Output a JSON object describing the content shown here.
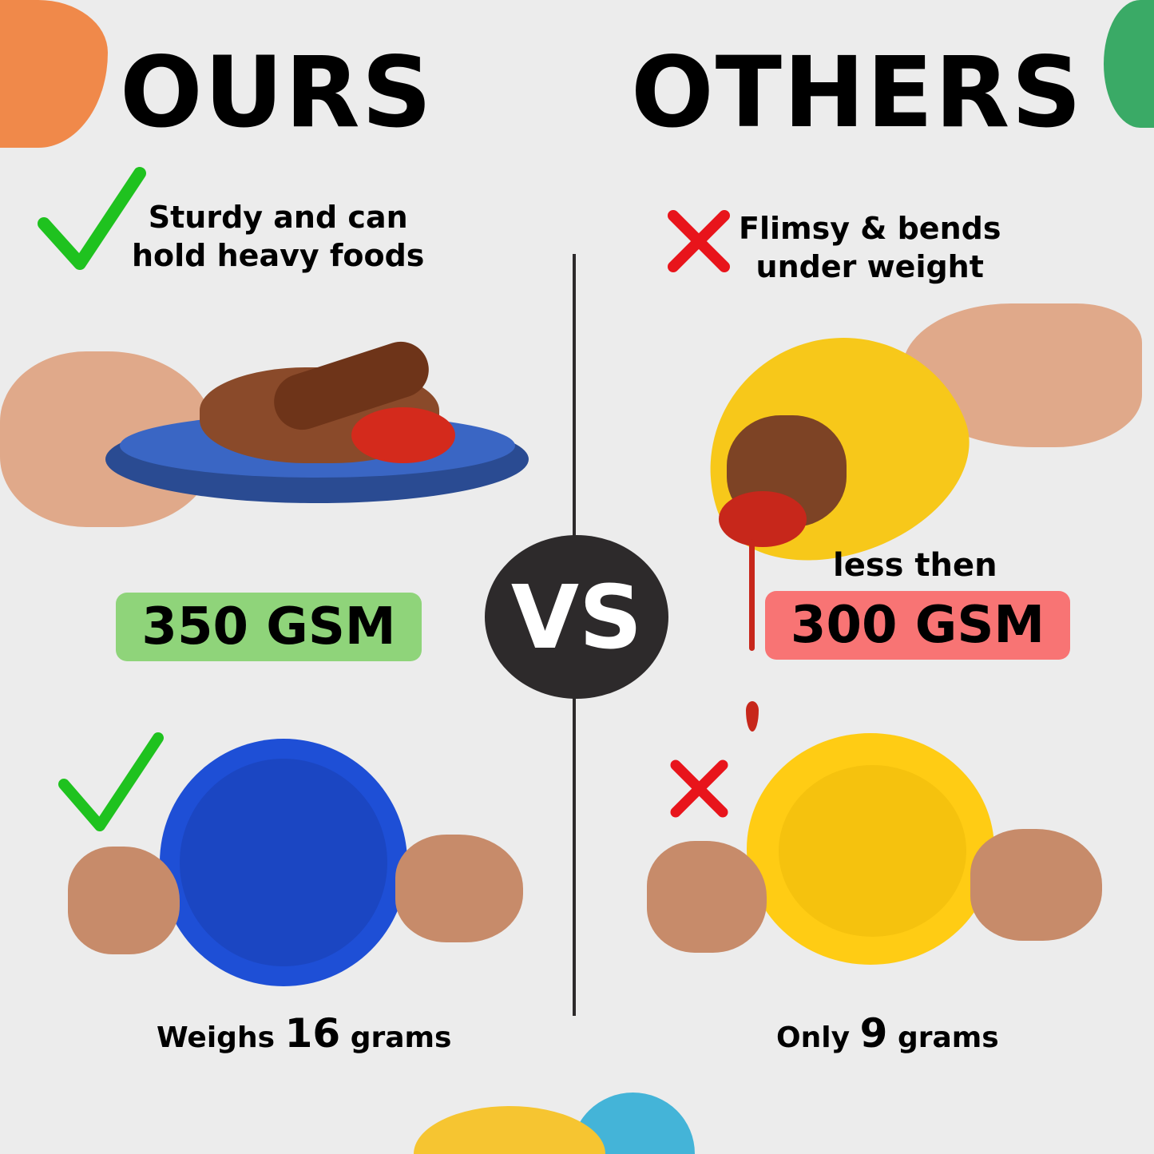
{
  "left": {
    "title": "OURS",
    "claim_line1": "Sturdy and can",
    "claim_line2": "hold heavy foods",
    "badge": "350 GSM",
    "badge_color": "#8fd47a",
    "weight_prefix": "Weighs",
    "weight_value": "16",
    "weight_unit": "grams",
    "mark_icon": "check-icon",
    "mark_color": "#1fc21f",
    "plate_color": "#1e4fd6"
  },
  "right": {
    "title": "OTHERS",
    "claim_line1": "Flimsy & bends",
    "claim_line2": "under weight",
    "badge_prefix": "less then",
    "badge": "300 GSM",
    "badge_color": "#f87474",
    "weight_prefix": "Only",
    "weight_value": "9",
    "weight_unit": "grams",
    "mark_icon": "x-icon",
    "mark_color": "#e8141b",
    "plate_color": "#ffcc14"
  },
  "center": {
    "vs_label": "VS"
  },
  "decor_colors": {
    "orange": "#f0894a",
    "green": "#3aaa66",
    "yellow": "#f6c531",
    "blue": "#44b4d8"
  }
}
